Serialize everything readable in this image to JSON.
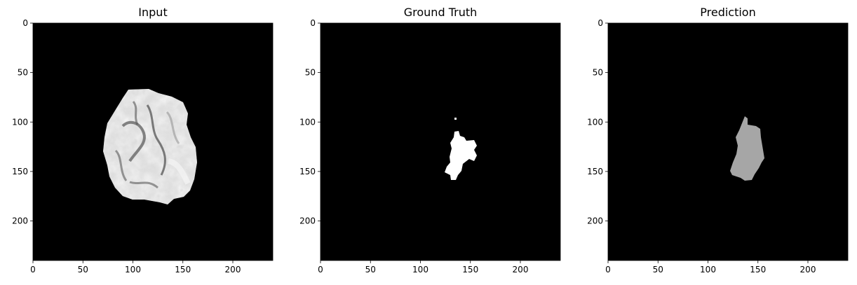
{
  "panels": [
    {
      "title": "Input",
      "xticks": [
        "0",
        "50",
        "100",
        "150",
        "200"
      ],
      "yticks": [
        "0",
        "50",
        "100",
        "150",
        "200"
      ]
    },
    {
      "title": "Ground Truth",
      "xticks": [
        "0",
        "50",
        "100",
        "150",
        "200"
      ],
      "yticks": [
        "0",
        "50",
        "100",
        "150",
        "200"
      ]
    },
    {
      "title": "Prediction",
      "xticks": [
        "0",
        "50",
        "100",
        "150",
        "200"
      ],
      "yticks": [
        "0",
        "50",
        "100",
        "150",
        "200"
      ]
    }
  ],
  "colors": {
    "background": "#000000",
    "brain_light": "#e6e6e6",
    "brain_dark": "#6e6e6e",
    "ground_truth_mask": "#ffffff",
    "prediction_mask": "#a6a6a6"
  }
}
